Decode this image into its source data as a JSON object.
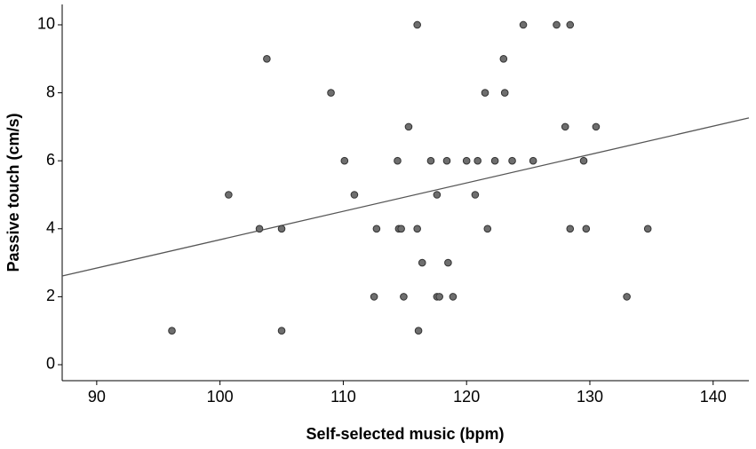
{
  "chart_data": {
    "type": "scatter",
    "x_label": "Self-selected music (bpm)",
    "y_label": "Passive touch (cm/s)",
    "x": [
      96.1,
      100.7,
      103.2,
      103.8,
      105.0,
      105.0,
      109.0,
      110.1,
      110.9,
      112.5,
      112.7,
      114.4,
      114.5,
      114.7,
      114.9,
      115.3,
      116.0,
      116.0,
      116.1,
      116.4,
      117.1,
      117.6,
      117.6,
      117.8,
      118.4,
      118.5,
      118.9,
      120.0,
      120.7,
      120.9,
      121.5,
      121.7,
      122.3,
      123.0,
      123.1,
      123.7,
      124.6,
      125.4,
      127.3,
      128.0,
      128.4,
      128.4,
      129.5,
      129.7,
      130.5,
      133.0,
      134.7
    ],
    "values": [
      1,
      5,
      4,
      9,
      4,
      1,
      8,
      6,
      5,
      2,
      4,
      6,
      4,
      4,
      2,
      7,
      4,
      10,
      1,
      3,
      6,
      2,
      5,
      2,
      6,
      3,
      2,
      6,
      5,
      6,
      8,
      4,
      6,
      9,
      8,
      6,
      10,
      6,
      10,
      7,
      4,
      10,
      6,
      4,
      7,
      2,
      4
    ],
    "color": "#6e6e6e",
    "trend_line": {
      "x": [
        87.2,
        142.9
      ],
      "values": [
        2.61,
        7.26
      ],
      "color": "#555555"
    },
    "xlim": [
      87.2,
      142.9
    ],
    "ylim": [
      -0.47,
      10.6
    ],
    "xticks": [
      90,
      100,
      110,
      120,
      130,
      140
    ],
    "yticks": [
      0,
      2,
      4,
      6,
      8,
      10
    ]
  }
}
